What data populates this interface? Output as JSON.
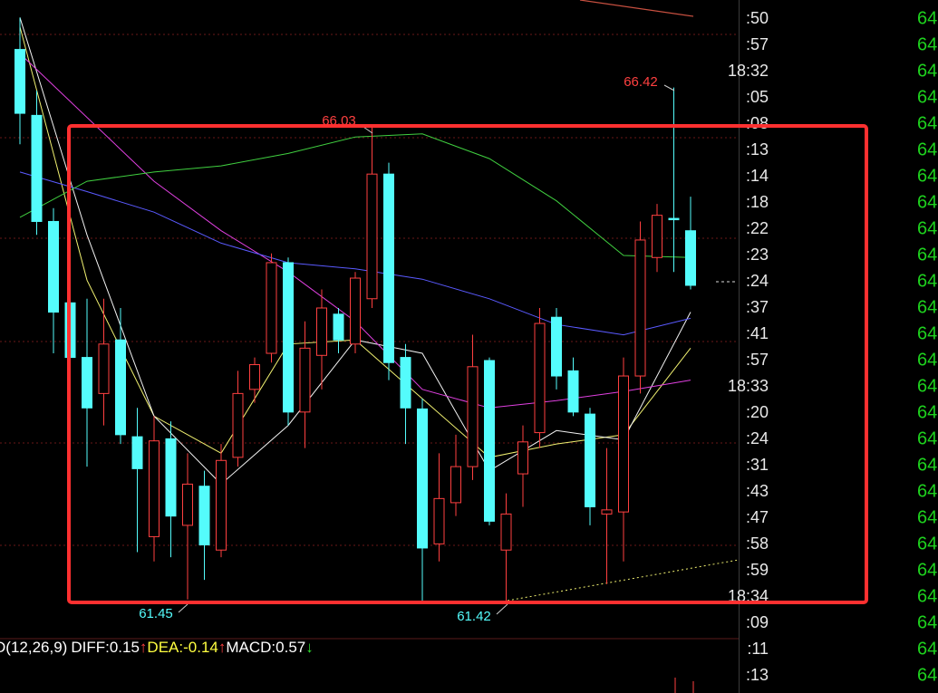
{
  "chart_data": {
    "type": "candlestick",
    "open": [
      66.79,
      66.15,
      65.12,
      64.33,
      63.8,
      63.45,
      63.97,
      63.03,
      62.06,
      63.01,
      62.17,
      62.55,
      61.93,
      62.83,
      63.49,
      63.84,
      64.72,
      63.27,
      63.82,
      64.22,
      63.93,
      64.37,
      65.58,
      63.8,
      63.3,
      61.99,
      62.39,
      62.74,
      63.77,
      61.93,
      62.67,
      63.07,
      64.19,
      63.67,
      63.25,
      62.28,
      62.3,
      63.62,
      64.77,
      65.15,
      65.03
    ],
    "high": [
      67.1,
      66.39,
      65.25,
      64.63,
      64.37,
      64.37,
      64.28,
      63.31,
      63.23,
      63.18,
      62.87,
      62.7,
      62.96,
      63.67,
      63.8,
      64.81,
      64.77,
      64.15,
      64.46,
      64.28,
      64.63,
      66.03,
      65.69,
      63.93,
      63.4,
      62.87,
      63.05,
      64.02,
      63.8,
      62.48,
      63.14,
      64.28,
      64.28,
      63.8,
      63.31,
      62.92,
      63.8,
      65.12,
      65.29,
      66.42,
      65.36
    ],
    "low": [
      65.87,
      64.99,
      63.84,
      63.58,
      62.74,
      63.14,
      62.96,
      61.91,
      61.82,
      61.86,
      61.45,
      61.64,
      61.86,
      62.74,
      63.36,
      63.75,
      63.14,
      62.92,
      63.49,
      63.84,
      63.84,
      64.28,
      63.58,
      62.96,
      61.43,
      61.82,
      62.26,
      62.61,
      62.17,
      61.42,
      62.35,
      62.92,
      63.49,
      63.23,
      62.17,
      61.6,
      61.82,
      63.45,
      64.63,
      64.63,
      64.46
    ],
    "close": [
      66.17,
      65.12,
      64.24,
      63.8,
      63.31,
      63.93,
      63.05,
      62.72,
      62.99,
      62.26,
      62.57,
      61.98,
      62.8,
      63.45,
      63.73,
      64.72,
      63.27,
      63.89,
      64.28,
      63.97,
      64.57,
      65.58,
      63.75,
      63.31,
      61.95,
      62.43,
      62.74,
      63.71,
      62.21,
      62.28,
      62.98,
      64.13,
      63.62,
      63.27,
      62.35,
      62.32,
      63.62,
      64.94,
      65.18,
      65.14,
      64.5
    ],
    "up_color": "#ff4040",
    "down_color": "#54fcfc",
    "ylim": [
      61.07,
      67.27
    ],
    "lines": [
      {
        "color": "#f0f070",
        "x": [
          0,
          4,
          8,
          12,
          16,
          20,
          24,
          28,
          32,
          36,
          40
        ],
        "values": [
          67.01,
          64.55,
          63.23,
          62.87,
          63.93,
          63.97,
          63.4,
          62.83,
          62.96,
          63.05,
          63.89
        ]
      },
      {
        "color": "#f2f2f2",
        "x": [
          0,
          4,
          8,
          12,
          16,
          20,
          24,
          28,
          32,
          36,
          40
        ],
        "values": [
          67.1,
          64.99,
          63.23,
          62.57,
          63.14,
          63.97,
          63.84,
          62.7,
          63.09,
          63.0,
          64.24
        ]
      },
      {
        "color": "#e040e0",
        "x": [
          0,
          4,
          8,
          12,
          16,
          20,
          24,
          28,
          32,
          36,
          40
        ],
        "values": [
          66.75,
          66.13,
          65.51,
          65.03,
          64.63,
          64.15,
          63.49,
          63.31,
          63.38,
          63.47,
          63.58
        ]
      },
      {
        "color": "#5a5aff",
        "x": [
          0,
          4,
          8,
          12,
          16,
          20,
          24,
          28,
          32,
          36,
          40
        ],
        "values": [
          65.6,
          65.41,
          65.21,
          64.91,
          64.72,
          64.66,
          64.56,
          64.37,
          64.12,
          64.02,
          64.18
        ]
      },
      {
        "color": "#40d040",
        "x": [
          0,
          4,
          8,
          12,
          16,
          20,
          24,
          28,
          32,
          36,
          40
        ],
        "values": [
          65.16,
          65.51,
          65.6,
          65.66,
          65.78,
          65.94,
          65.97,
          65.73,
          65.32,
          64.79,
          64.77
        ]
      }
    ]
  },
  "macd_legend": {
    "name": "D(12,26,9)",
    "items": [
      {
        "label": "DIFF:0.15",
        "color": "#ffffff",
        "arrow": "↑",
        "arrow_color": "#ff4040"
      },
      {
        "label": "DEA:-0.14",
        "color": "#ffff40",
        "arrow": "↑",
        "arrow_color": "#ff4040"
      },
      {
        "label": "MACD:0.57",
        "color": "#ffffff",
        "arrow": "↓",
        "arrow_color": "#30e030"
      }
    ]
  },
  "time_column": {
    "rows": [
      [
        ":50",
        "64"
      ],
      [
        ":57",
        "64"
      ],
      [
        "18:32",
        "64"
      ],
      [
        ":05",
        "64"
      ],
      [
        ":08",
        "64"
      ],
      [
        ":13",
        "64"
      ],
      [
        ":14",
        "64"
      ],
      [
        ":18",
        "64"
      ],
      [
        ":22",
        "64"
      ],
      [
        ":23",
        "64"
      ],
      [
        ":24",
        "64"
      ],
      [
        ":37",
        "64"
      ],
      [
        ":41",
        "64"
      ],
      [
        ":57",
        "64"
      ],
      [
        "18:33",
        "64"
      ],
      [
        ":20",
        "64"
      ],
      [
        ":24",
        "64"
      ],
      [
        ":31",
        "64"
      ],
      [
        ":43",
        "64"
      ],
      [
        ":47",
        "64"
      ],
      [
        ":58",
        "64"
      ],
      [
        ":59",
        "64"
      ],
      [
        "18:34",
        "64"
      ],
      [
        ":09",
        "64"
      ],
      [
        ":11",
        "64"
      ],
      [
        ":13",
        "64"
      ]
    ]
  }
}
